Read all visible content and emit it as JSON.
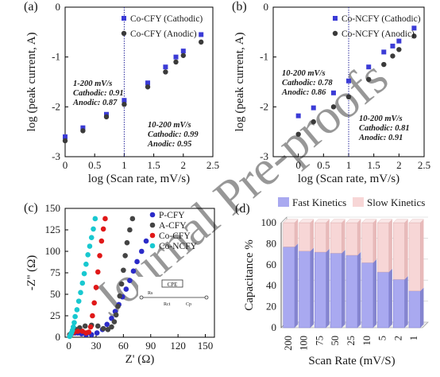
{
  "watermark": "Journal Pre-proofs",
  "charts": [
    {
      "panel_label": "(a)",
      "type": "scatter",
      "xlabel": "log (Scan rate, mV/s)",
      "ylabel": "log (peak current, A)",
      "xlim": [
        0,
        2.5
      ],
      "ylim": [
        -3,
        0
      ],
      "xticks": [
        "0",
        "0.5",
        "1",
        "1.5",
        "2",
        "2.5"
      ],
      "yticks": [
        "-3",
        "-2",
        "-1",
        "0"
      ],
      "divider_x": 1.0,
      "series": [
        {
          "name": "Co-CFY (Cathodic)",
          "marker": "square",
          "color": "#3b3bd6",
          "x": [
            0,
            0.301,
            0.699,
            1.0,
            1.398,
            1.699,
            1.875,
            2.0,
            2.301
          ],
          "y": [
            -2.6,
            -2.42,
            -2.15,
            -1.87,
            -1.52,
            -1.2,
            -1.0,
            -0.88,
            -0.55
          ]
        },
        {
          "name": "Co-CFY (Anodic)",
          "marker": "circle",
          "color": "#3a3a3a",
          "x": [
            0,
            0.301,
            0.699,
            1.0,
            1.398,
            1.699,
            1.875,
            2.0,
            2.301
          ],
          "y": [
            -2.68,
            -2.48,
            -2.2,
            -1.95,
            -1.6,
            -1.3,
            -1.1,
            -0.97,
            -0.7
          ]
        }
      ],
      "annotations": [
        {
          "lines": [
            "1-200 mV/s",
            "Cathodic: 0.91",
            "Anodic: 0.87"
          ]
        },
        {
          "lines": [
            "10-200 mV/s",
            "Cathodic: 0.99",
            "Anodic: 0.95"
          ]
        }
      ],
      "legend_position": "top-right"
    },
    {
      "panel_label": "(b)",
      "type": "scatter",
      "xlabel": "log (Scan rate, mV/s)",
      "ylabel": "log (peak current, A)",
      "xlim": [
        -0.5,
        2.5
      ],
      "ylim": [
        -3,
        0
      ],
      "xticks": [
        "0",
        "0.5",
        "1",
        "1.5",
        "2",
        "2.5"
      ],
      "yticks": [
        "-3",
        "-2",
        "-1",
        "0"
      ],
      "divider_x": 1.0,
      "series": [
        {
          "name": "Co-NCFY (Cathodic)",
          "marker": "square",
          "color": "#3b3bd6",
          "x": [
            0,
            0.301,
            0.699,
            1.0,
            1.398,
            1.699,
            1.875,
            2.0,
            2.301
          ],
          "y": [
            -2.18,
            -2.02,
            -1.72,
            -1.48,
            -1.2,
            -0.9,
            -0.78,
            -0.68,
            -0.42
          ]
        },
        {
          "name": "Co-NCFY (Anodic)",
          "marker": "circle",
          "color": "#3a3a3a",
          "x": [
            0,
            0.301,
            0.699,
            1.0,
            1.398,
            1.699,
            1.875,
            2.0,
            2.301
          ],
          "y": [
            -2.55,
            -2.3,
            -2.0,
            -1.8,
            -1.45,
            -1.15,
            -0.98,
            -0.85,
            -0.58
          ]
        }
      ],
      "annotations": [
        {
          "lines": [
            "10-200 mV/s",
            "Cathodic: 0.78",
            "Anodic: 0.86"
          ]
        },
        {
          "lines": [
            "10-200 mV/s",
            "Cathodic: 0.81",
            "Anodic: 0.91"
          ]
        }
      ],
      "legend_position": "top-right"
    },
    {
      "panel_label": "(c)",
      "type": "scatter",
      "xlabel": "Z' (Ω)",
      "ylabel": "-Z'' (Ω)",
      "xlim": [
        0,
        160
      ],
      "ylim": [
        0,
        150
      ],
      "xticks": [
        "0",
        "30",
        "60",
        "90",
        "120",
        "150"
      ],
      "yticks": [
        "0",
        "25",
        "50",
        "75",
        "100",
        "125",
        "150"
      ],
      "series": [
        {
          "name": "P-CFY",
          "color": "#2b2bc8",
          "x": [
            1,
            3,
            5,
            7,
            10,
            14,
            19,
            25,
            31,
            37,
            42,
            47,
            51,
            55,
            59,
            63,
            67,
            71,
            75,
            80,
            85
          ],
          "y": [
            2,
            4,
            5,
            5,
            5,
            4,
            3,
            3,
            5,
            9,
            15,
            22,
            30,
            38,
            47,
            56,
            66,
            77,
            88,
            100,
            112
          ]
        },
        {
          "name": "A-CFY",
          "color": "#444444",
          "x": [
            1,
            3,
            5,
            8,
            12,
            18,
            25,
            32,
            38,
            43,
            47,
            50,
            52,
            54,
            56,
            58,
            60,
            62,
            64,
            67,
            70
          ],
          "y": [
            3,
            5,
            7,
            9,
            11,
            13,
            14,
            13,
            10,
            9,
            12,
            18,
            26,
            36,
            48,
            62,
            78,
            95,
            110,
            125,
            138
          ]
        },
        {
          "name": "Co-CFY",
          "color": "#e01818",
          "x": [
            1,
            3,
            6,
            10,
            15,
            19,
            22,
            24,
            26,
            28,
            30,
            32,
            34,
            36,
            38,
            40
          ],
          "y": [
            2,
            4,
            6,
            7,
            7,
            5,
            6,
            12,
            25,
            40,
            58,
            76,
            95,
            112,
            126,
            138
          ]
        },
        {
          "name": "Co-NCFY",
          "color": "#18c8d0",
          "x": [
            1,
            2,
            3,
            4,
            5,
            6,
            7,
            9,
            11,
            13,
            15,
            17,
            19,
            21,
            23,
            25,
            27,
            29
          ],
          "y": [
            1,
            3,
            5,
            8,
            12,
            17,
            24,
            32,
            42,
            52,
            63,
            74,
            85,
            96,
            106,
            116,
            126,
            138
          ]
        }
      ],
      "inset_labels": {
        "cpe": "CPE",
        "rs": "Rs",
        "rct": "Rct",
        "cp": "Cp"
      },
      "legend_position": "top-right"
    },
    {
      "panel_label": "(d)",
      "type": "bar",
      "stacked": true,
      "xlabel": "Scan Rate (mV/S)",
      "ylabel": "Capacitance %",
      "ylim": [
        0,
        100
      ],
      "yticks": [
        "0",
        "20",
        "40",
        "60",
        "80",
        "100"
      ],
      "categories": [
        "200",
        "100",
        "75",
        "50",
        "25",
        "10",
        "5",
        "2",
        "1"
      ],
      "series": [
        {
          "name": "Fast Kinetics",
          "color": "#a9a9f0",
          "values": [
            77,
            73,
            72,
            71,
            69,
            62,
            53,
            46,
            35
          ]
        },
        {
          "name": "Slow Kinetics",
          "color": "#f7d6d6",
          "values": [
            23,
            27,
            28,
            29,
            31,
            38,
            47,
            54,
            65
          ]
        }
      ],
      "legend_position": "top"
    }
  ]
}
